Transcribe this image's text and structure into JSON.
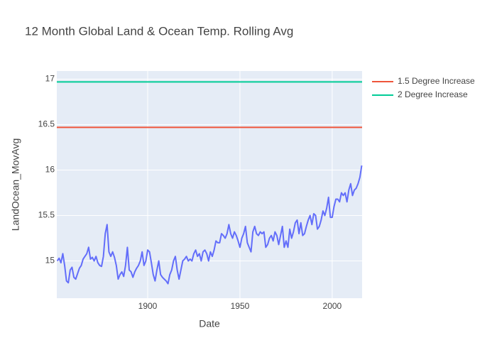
{
  "chart_data": {
    "type": "line",
    "title": "12 Month Global Land & Ocean Temp. Rolling Avg",
    "x_label": "Date",
    "y_label": "LandOcean_MovAvg",
    "xlim": [
      1850.75,
      2016.2
    ],
    "ylim": [
      14.59,
      17.09
    ],
    "xticks": [
      1900,
      1950,
      2000
    ],
    "yticks": [
      15,
      15.5,
      16,
      16.5,
      17
    ],
    "grid": true,
    "legend": "top-right",
    "series": [
      {
        "color": "#636efa",
        "show_legend": false,
        "x": [
          1851,
          1852,
          1853,
          1854,
          1855,
          1856,
          1857,
          1858,
          1859,
          1860,
          1861,
          1862,
          1863,
          1864,
          1865,
          1866,
          1867,
          1868,
          1869,
          1870,
          1871,
          1872,
          1873,
          1874,
          1875,
          1876,
          1877,
          1878,
          1879,
          1880,
          1881,
          1882,
          1883,
          1884,
          1885,
          1886,
          1887,
          1888,
          1889,
          1890,
          1891,
          1892,
          1893,
          1894,
          1895,
          1896,
          1897,
          1898,
          1899,
          1900,
          1901,
          1902,
          1903,
          1904,
          1905,
          1906,
          1907,
          1908,
          1909,
          1910,
          1911,
          1912,
          1913,
          1914,
          1915,
          1916,
          1917,
          1918,
          1919,
          1920,
          1921,
          1922,
          1923,
          1924,
          1925,
          1926,
          1927,
          1928,
          1929,
          1930,
          1931,
          1932,
          1933,
          1934,
          1935,
          1936,
          1937,
          1938,
          1939,
          1940,
          1941,
          1942,
          1943,
          1944,
          1945,
          1946,
          1947,
          1948,
          1949,
          1950,
          1951,
          1952,
          1953,
          1954,
          1955,
          1956,
          1957,
          1958,
          1959,
          1960,
          1961,
          1962,
          1963,
          1964,
          1965,
          1966,
          1967,
          1968,
          1969,
          1970,
          1971,
          1972,
          1973,
          1974,
          1975,
          1976,
          1977,
          1978,
          1979,
          1980,
          1981,
          1982,
          1983,
          1984,
          1985,
          1986,
          1987,
          1988,
          1989,
          1990,
          1991,
          1992,
          1993,
          1994,
          1995,
          1996,
          1997,
          1998,
          1999,
          2000,
          2001,
          2002,
          2003,
          2004,
          2005,
          2006,
          2007,
          2008,
          2009,
          2010,
          2011,
          2012,
          2013,
          2014,
          2015,
          2016
        ],
        "values": [
          15.0,
          15.03,
          14.98,
          15.08,
          14.95,
          14.78,
          14.76,
          14.9,
          14.93,
          14.82,
          14.8,
          14.86,
          14.92,
          14.95,
          15.02,
          15.05,
          15.08,
          15.15,
          15.02,
          15.04,
          15.0,
          15.05,
          14.98,
          14.95,
          14.94,
          15.05,
          15.3,
          15.4,
          15.1,
          15.05,
          15.1,
          15.04,
          14.95,
          14.8,
          14.85,
          14.88,
          14.83,
          14.95,
          15.15,
          14.9,
          14.88,
          14.82,
          14.88,
          14.92,
          14.95,
          15.0,
          15.1,
          14.95,
          15.0,
          15.12,
          15.1,
          14.98,
          14.85,
          14.78,
          14.9,
          15.0,
          14.85,
          14.82,
          14.8,
          14.78,
          14.75,
          14.85,
          14.9,
          15.0,
          15.05,
          14.9,
          14.8,
          14.9,
          15.0,
          15.02,
          15.05,
          15.0,
          15.02,
          15.0,
          15.08,
          15.12,
          15.05,
          15.08,
          15.0,
          15.1,
          15.12,
          15.08,
          15.0,
          15.1,
          15.05,
          15.12,
          15.22,
          15.2,
          15.2,
          15.3,
          15.28,
          15.25,
          15.3,
          15.4,
          15.3,
          15.25,
          15.32,
          15.28,
          15.22,
          15.15,
          15.25,
          15.3,
          15.38,
          15.2,
          15.15,
          15.1,
          15.32,
          15.38,
          15.3,
          15.28,
          15.32,
          15.3,
          15.32,
          15.15,
          15.18,
          15.25,
          15.28,
          15.22,
          15.32,
          15.28,
          15.18,
          15.28,
          15.38,
          15.15,
          15.22,
          15.15,
          15.35,
          15.25,
          15.32,
          15.42,
          15.45,
          15.3,
          15.42,
          15.28,
          15.3,
          15.38,
          15.45,
          15.5,
          15.4,
          15.52,
          15.5,
          15.35,
          15.38,
          15.45,
          15.55,
          15.5,
          15.58,
          15.7,
          15.48,
          15.48,
          15.6,
          15.68,
          15.68,
          15.65,
          15.75,
          15.72,
          15.75,
          15.65,
          15.78,
          15.85,
          15.72,
          15.78,
          15.8,
          15.85,
          15.92,
          16.05
        ]
      },
      {
        "name": "1.5 Degree Increase",
        "color": "#ef553b",
        "x": [
          1850.75,
          2016.2
        ],
        "values": [
          16.47,
          16.47
        ]
      },
      {
        "name": "2 Degree Increase",
        "color": "#00cc96",
        "x": [
          1850.75,
          2016.2
        ],
        "values": [
          16.97,
          16.97
        ]
      }
    ]
  }
}
